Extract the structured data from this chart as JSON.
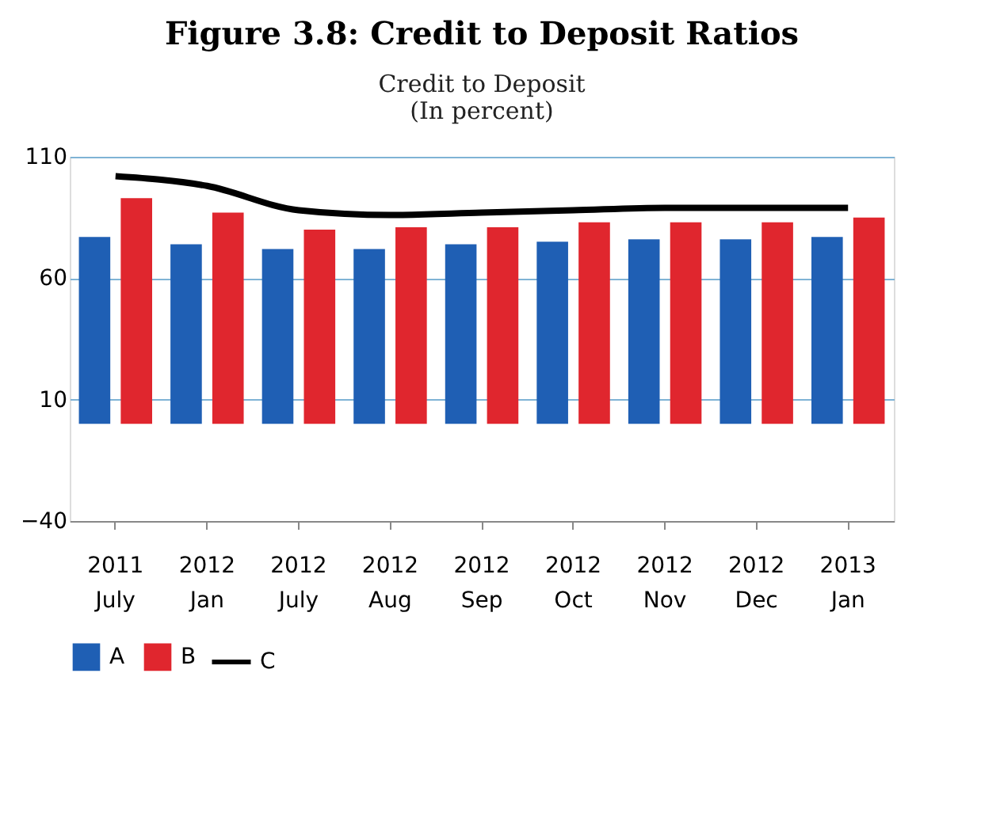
{
  "chart_data": {
    "type": "bar",
    "title": "Figure 3.8:  Credit to Deposit Ratios",
    "subtitle": "Credit to Deposit\n(In percent)",
    "categories": [
      "2011 July",
      "2012 Jan",
      "2012 July",
      "2012 Aug",
      "2012 Sep",
      "2012 Oct",
      "2012 Nov",
      "2012 Dec",
      "2013 Jan"
    ],
    "series": [
      {
        "name": "A",
        "color": "#1f5fb4",
        "values": [
          77,
          74,
          72,
          72,
          74,
          75,
          76,
          76,
          77
        ]
      },
      {
        "name": "B",
        "color": "#e0262e",
        "values": [
          93,
          87,
          80,
          81,
          81,
          83,
          83,
          83,
          85
        ]
      },
      {
        "name": "C",
        "color": "#000000",
        "type": "line",
        "values": [
          102,
          98,
          88,
          86,
          87,
          88,
          89,
          89,
          89
        ]
      }
    ],
    "ylim": [
      -40,
      110
    ],
    "yticks": [
      -40,
      10,
      60,
      110
    ],
    "grid": "y",
    "legend": "bottom",
    "marker": "none"
  }
}
